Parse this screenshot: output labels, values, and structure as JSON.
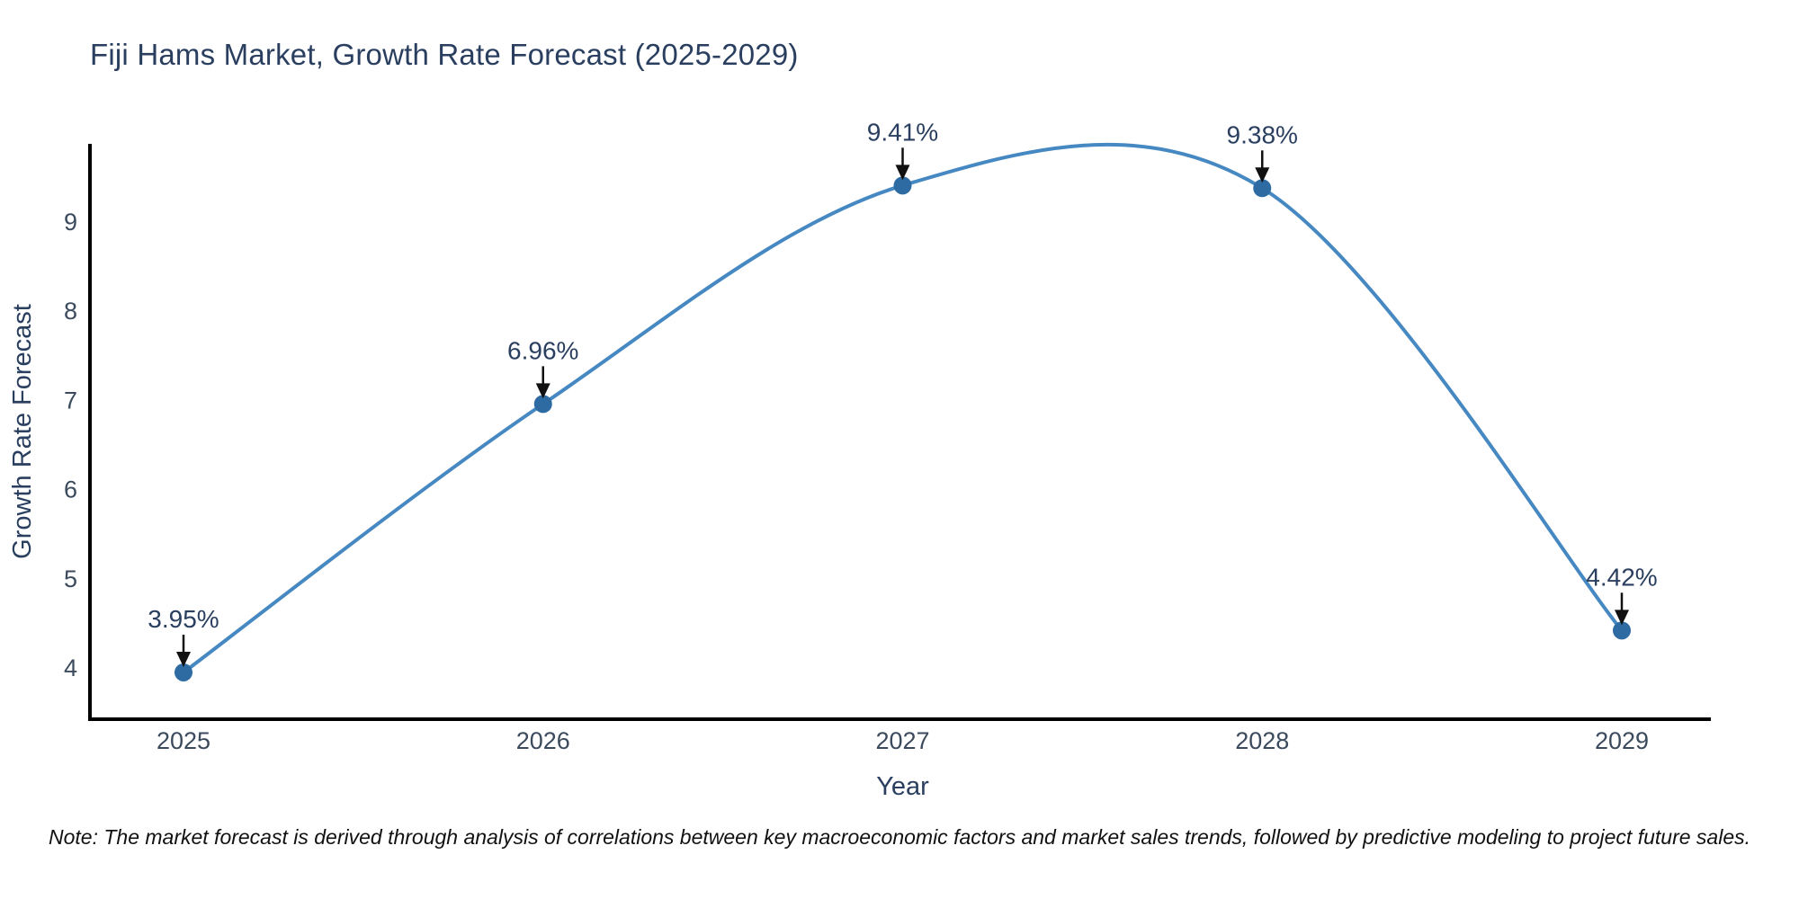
{
  "title": "Fiji Hams Market, Growth Rate Forecast (2025-2029)",
  "note": "Note: The market forecast is derived through analysis of correlations between key macroeconomic factors and market sales trends, followed by predictive modeling to project future sales.",
  "chart_data": {
    "type": "line",
    "title": "Fiji Hams Market, Growth Rate Forecast (2025-2029)",
    "x": [
      2025,
      2026,
      2027,
      2028,
      2029
    ],
    "y": [
      3.95,
      6.96,
      9.41,
      9.38,
      4.42
    ],
    "point_labels": [
      "3.95%",
      "6.96%",
      "9.41%",
      "9.38%",
      "4.42%"
    ],
    "xlabel": "Year",
    "ylabel": "Growth Rate Forecast",
    "yticks": [
      4,
      5,
      6,
      7,
      8,
      9
    ],
    "ylim": [
      3.42,
      9.88
    ],
    "line_shape": "spline",
    "grid": false,
    "legend": "none",
    "colors": {
      "line": "#4688c2",
      "marker": "#2e6ba3",
      "arrow": "#111111",
      "axis_line": "#000000",
      "title_text": "#2a3f5f",
      "tick_text": "#3b4a5c",
      "note_text": "#111111"
    }
  }
}
